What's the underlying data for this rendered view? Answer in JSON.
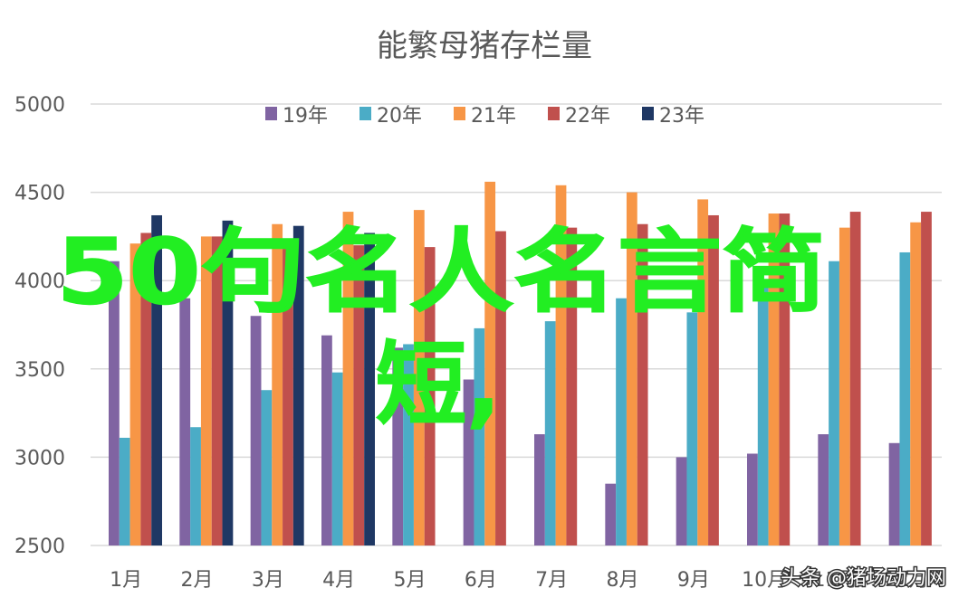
{
  "chart_data": {
    "type": "bar",
    "title": "能繁母猪存栏量",
    "xlabel": "",
    "ylabel": "",
    "ylim": [
      2500,
      5000
    ],
    "yticks": [
      2500,
      3000,
      3500,
      4000,
      4500,
      5000
    ],
    "grid": true,
    "legend_position": "top",
    "categories": [
      "1月",
      "2月",
      "3月",
      "4月",
      "5月",
      "6月",
      "7月",
      "8月",
      "9月",
      "10月",
      "11月",
      "12月"
    ],
    "series": [
      {
        "name": "19年",
        "color": "#8064a2",
        "values": [
          4110,
          3900,
          3800,
          3690,
          3620,
          3440,
          3130,
          2850,
          3000,
          3020,
          3130,
          3080
        ]
      },
      {
        "name": "20年",
        "color": "#4bacc6",
        "values": [
          3110,
          3170,
          3380,
          3480,
          3640,
          3730,
          3770,
          3900,
          3820,
          3960,
          4110,
          4160
        ]
      },
      {
        "name": "21年",
        "color": "#f79646",
        "values": [
          4210,
          4250,
          4320,
          4390,
          4400,
          4560,
          4540,
          4500,
          4460,
          4380,
          4300,
          4330
        ]
      },
      {
        "name": "22年",
        "color": "#c0504d",
        "values": [
          4270,
          4250,
          4180,
          4200,
          4190,
          4280,
          4300,
          4320,
          4370,
          4380,
          4390,
          4390
        ]
      },
      {
        "name": "23年",
        "color": "#1f3864",
        "values": [
          4370,
          4340,
          4310,
          4270,
          null,
          null,
          null,
          null,
          null,
          null,
          null,
          null
        ]
      }
    ]
  },
  "overlay": {
    "line1": "50句名人名言简",
    "line2": "短,"
  },
  "watermark": "头条 @猪场动力网"
}
